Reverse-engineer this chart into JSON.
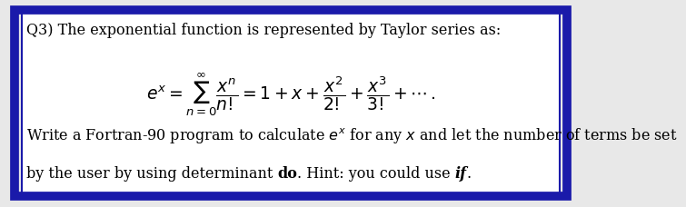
{
  "bg_color": "#e8e8e8",
  "box_color": "#ffffff",
  "border_outer_color": "#1a1aaa",
  "border_inner_color": "#1a1aaa",
  "title_text": "Q3) The exponential function is represented by Taylor series as:",
  "formula": "$e^x = \\sum_{n=0}^{\\infty} \\dfrac{x^n}{n!} = 1 + x + \\dfrac{x^2}{2!} + \\dfrac{x^3}{3!} + \\cdots\\,.$",
  "body_line1": "Write a Fortran-90 program to calculate $e^x$ for any $x$ and let the number of terms be set",
  "body_line2_normal": "by the user by using determinant ",
  "body_bold": "do",
  "body_middle": ". Hint: you could use ",
  "body_italic": "if",
  "body_end": ".",
  "title_fontsize": 11.5,
  "formula_fontsize": 13.5,
  "body_fontsize": 11.5,
  "fig_width": 8.0,
  "fig_height": 2.71
}
